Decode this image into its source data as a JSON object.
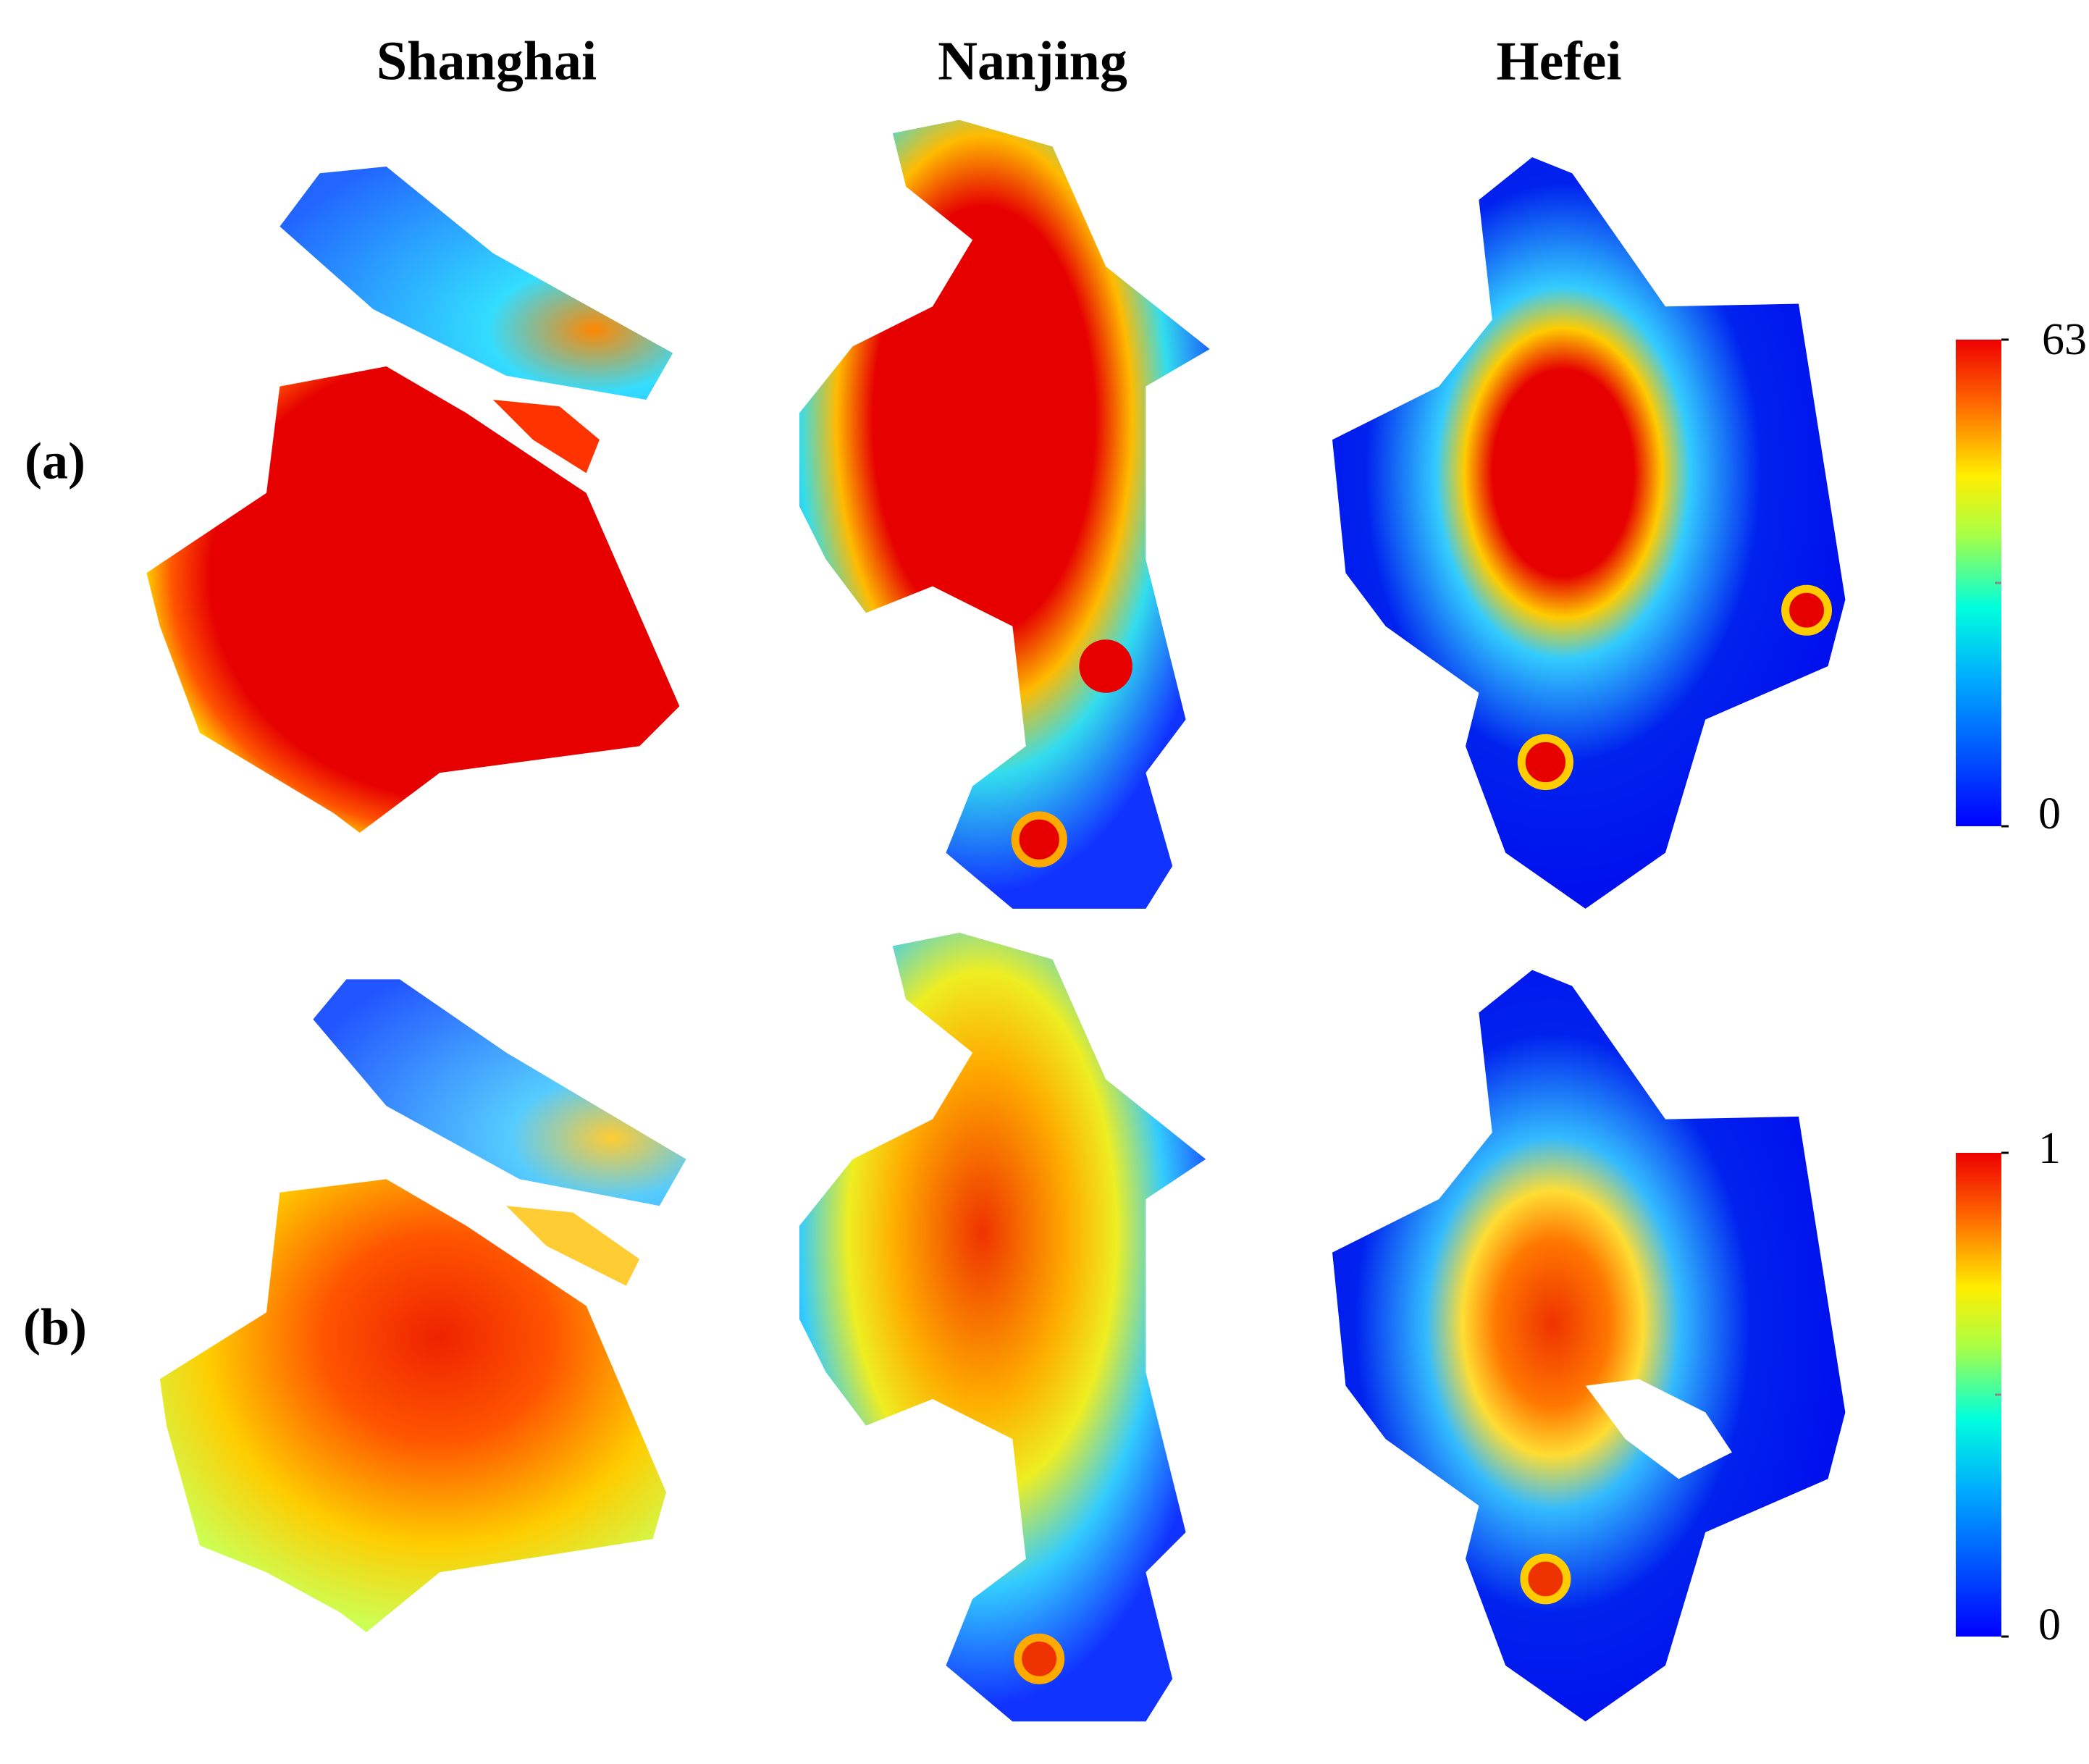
{
  "columns": [
    "Shanghai",
    "Nanjing",
    "Hefei"
  ],
  "rows": [
    "(a)",
    "(b)"
  ],
  "colorbars": [
    {
      "max": "63",
      "min": "0"
    },
    {
      "max": "1",
      "min": "0"
    }
  ]
}
